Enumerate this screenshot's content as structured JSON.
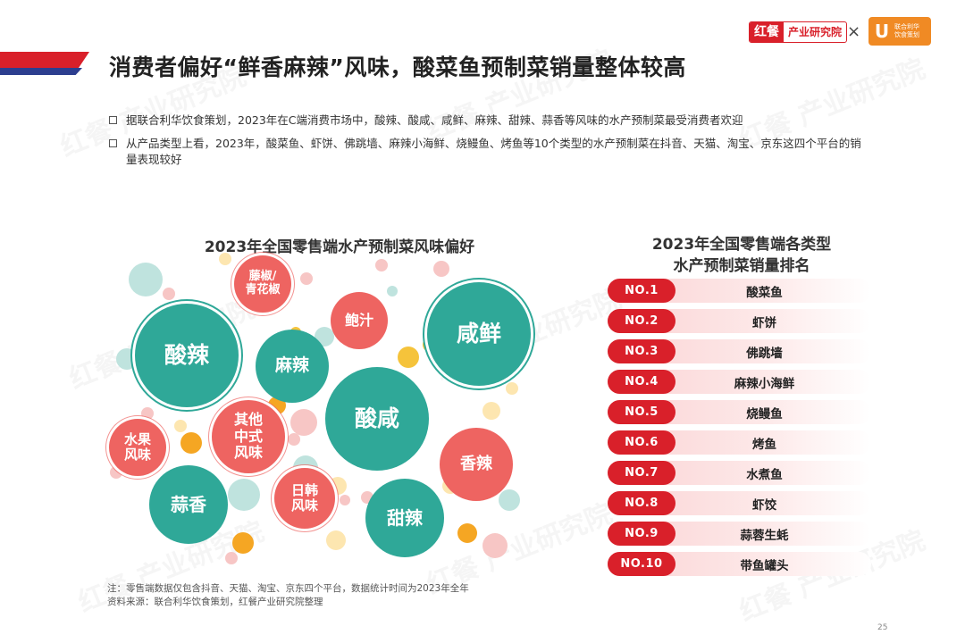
{
  "header": {
    "title": "消费者偏好“鲜香麻辣”风味，酸菜鱼预制菜销量整体较高",
    "logo_hong_mark": "红餐",
    "logo_hong_text": "产业研究院",
    "logo_separator": "×",
    "logo_uni_mark": "U",
    "logo_uni_text_1": "联合利华",
    "logo_uni_text_2": "饮食策划"
  },
  "bullets": [
    "据联合利华饮食策划，2023年在C端消费市场中，酸辣、酸咸、咸鲜、麻辣、甜辣、蒜香等风味的水产预制菜最受消费者欢迎",
    "从产品类型上看，2023年，酸菜鱼、虾饼、佛跳墙、麻辣小海鲜、烧鳗鱼、烤鱼等10个类型的水产预制菜在抖音、天猫、淘宝、京东这四个平台的销量表现较好"
  ],
  "left_chart": {
    "title": "2023年全国零售端水产预制菜风味偏好",
    "bubbles": {
      "suanla": "酸辣",
      "tengjiao_1": "藤椒/",
      "tengjiao_2": "青花椒",
      "baozhi": "鲍汁",
      "xianxian": "咸鲜",
      "mala": "麻辣",
      "suanxian": "酸咸",
      "shuiguo_1": "水果",
      "shuiguo_2": "风味",
      "qita_1": "其他",
      "qita_2": "中式",
      "qita_3": "风味",
      "xiangla": "香辣",
      "suanxiang": "蒜香",
      "rihan_1": "日韩",
      "rihan_2": "风味",
      "tianla": "甜辣"
    }
  },
  "right_chart": {
    "title_line1": "2023年全国零售端各类型",
    "title_line2": "水产预制菜销量排名",
    "ranks": [
      {
        "no": "NO.1",
        "name": "酸菜鱼"
      },
      {
        "no": "NO.2",
        "name": "虾饼"
      },
      {
        "no": "NO.3",
        "name": "佛跳墙"
      },
      {
        "no": "NO.4",
        "name": "麻辣小海鲜"
      },
      {
        "no": "NO.5",
        "name": "烧鳗鱼"
      },
      {
        "no": "NO.6",
        "name": "烤鱼"
      },
      {
        "no": "NO.7",
        "name": "水煮鱼"
      },
      {
        "no": "NO.8",
        "name": "虾饺"
      },
      {
        "no": "NO.9",
        "name": "蒜蓉生蚝"
      },
      {
        "no": "NO.10",
        "name": "带鱼罐头"
      }
    ]
  },
  "footer": {
    "note": "注：零售端数据仅包含抖音、天猫、淘宝、京东四个平台，数据统计时间为2023年全年",
    "source": "资料来源：联合利华饮食策划，红餐产业研究院整理",
    "page_number": "25"
  },
  "watermark": "红餐 产业研究院",
  "colors": {
    "brand_red": "#d9202a",
    "brand_blue": "#2c3e8f",
    "teal": "#2fa898",
    "coral": "#ee6461",
    "unilever_orange": "#f08a24"
  }
}
